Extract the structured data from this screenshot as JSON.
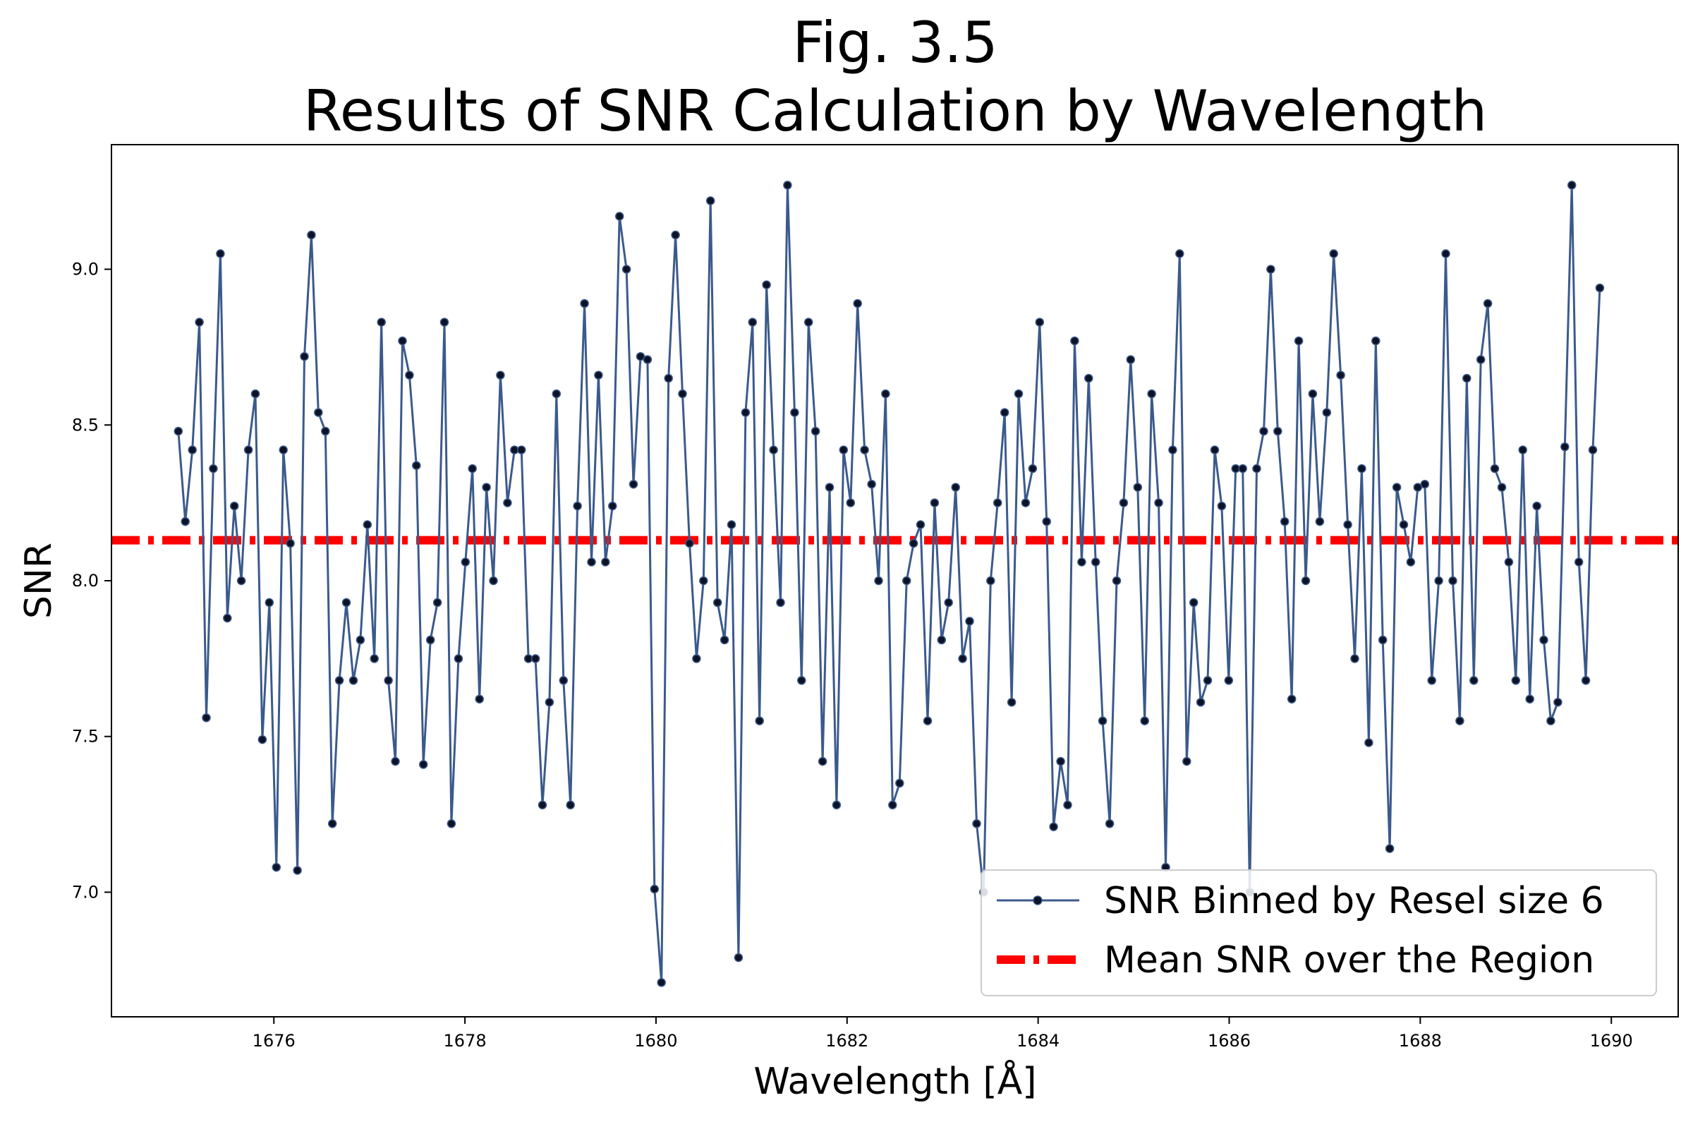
{
  "chart_data": {
    "type": "line",
    "title_line1": "Fig. 3.5",
    "title_line2": "Results of SNR Calculation by Wavelength",
    "xlabel": "Wavelength [Å]",
    "ylabel": "SNR",
    "xlim": [
      1674.3,
      1690.7
    ],
    "ylim": [
      6.6,
      9.4
    ],
    "xticks": [
      1676,
      1678,
      1680,
      1682,
      1684,
      1686,
      1688,
      1690
    ],
    "yticks": [
      7.0,
      7.5,
      8.0,
      8.5,
      9.0
    ],
    "xtick_labels": [
      "1676",
      "1678",
      "1680",
      "1682",
      "1684",
      "1686",
      "1688",
      "1690"
    ],
    "ytick_labels": [
      "7.0",
      "7.5",
      "8.0",
      "8.5",
      "9.0"
    ],
    "grid": false,
    "legend_position": "lower-right",
    "series": [
      {
        "name": "SNR Binned by Resel size 6",
        "color": "#3b5a8c",
        "marker_color": "#0d1326",
        "x_start": 1675.0,
        "x_step": 0.0733,
        "values": [
          8.48,
          8.19,
          8.42,
          8.83,
          7.56,
          8.36,
          9.05,
          7.88,
          8.24,
          8.0,
          8.42,
          8.6,
          7.49,
          7.93,
          7.08,
          8.42,
          8.12,
          7.07,
          8.72,
          9.11,
          8.54,
          8.48,
          7.22,
          7.68,
          7.93,
          7.68,
          7.81,
          8.18,
          7.75,
          8.83,
          7.68,
          7.42,
          8.77,
          8.66,
          8.37,
          7.41,
          7.81,
          7.93,
          8.83,
          7.22,
          7.75,
          8.06,
          8.36,
          7.62,
          8.3,
          8.0,
          8.66,
          8.25,
          8.42,
          8.42,
          7.75,
          7.75,
          7.28,
          7.61,
          8.6,
          7.68,
          7.28,
          8.24,
          8.89,
          8.06,
          8.66,
          8.06,
          8.24,
          9.17,
          9.0,
          8.31,
          8.72,
          8.71,
          7.01,
          6.71,
          8.65,
          9.11,
          8.6,
          8.12,
          7.75,
          8.0,
          9.22,
          7.93,
          7.81,
          8.18,
          6.79,
          8.54,
          8.83,
          7.55,
          8.95,
          8.42,
          7.93,
          9.27,
          8.54,
          7.68,
          8.83,
          8.48,
          7.42,
          8.3,
          7.28,
          8.42,
          8.25,
          8.89,
          8.42,
          8.31,
          8.0,
          8.6,
          7.28,
          7.35,
          8.0,
          8.12,
          8.18,
          7.55,
          8.25,
          7.81,
          7.93,
          8.3,
          7.75,
          7.87,
          7.22,
          7.0,
          8.0,
          8.25,
          8.54,
          7.61,
          8.6,
          8.25,
          8.36,
          8.83,
          8.19,
          7.21,
          7.42,
          7.28,
          8.77,
          8.06,
          8.65,
          8.06,
          7.55,
          7.22,
          8.0,
          8.25,
          8.71,
          8.3,
          7.55,
          8.6,
          8.25,
          7.08,
          8.42,
          9.05,
          7.42,
          7.93,
          7.61,
          7.68,
          8.42,
          8.24,
          7.68,
          8.36,
          8.36,
          7.0,
          8.36,
          8.48,
          9.0,
          8.48,
          8.19,
          7.62,
          8.77,
          8.0,
          8.6,
          8.19,
          8.54,
          9.05,
          8.66,
          8.18,
          7.75,
          8.36,
          7.48,
          8.77,
          7.81,
          7.14,
          8.3,
          8.18,
          8.06,
          8.3,
          8.31,
          7.68,
          8.0,
          9.05,
          8.0,
          7.55,
          8.65,
          7.68,
          8.71,
          8.89,
          8.36,
          8.3,
          8.06,
          7.68,
          8.42,
          7.62,
          8.24,
          7.81,
          7.55,
          7.61,
          8.43,
          9.27,
          8.06,
          7.68,
          8.42,
          8.94
        ]
      },
      {
        "name": "Mean SNR over the Region",
        "color": "#ff0000",
        "value": 8.13
      }
    ]
  }
}
